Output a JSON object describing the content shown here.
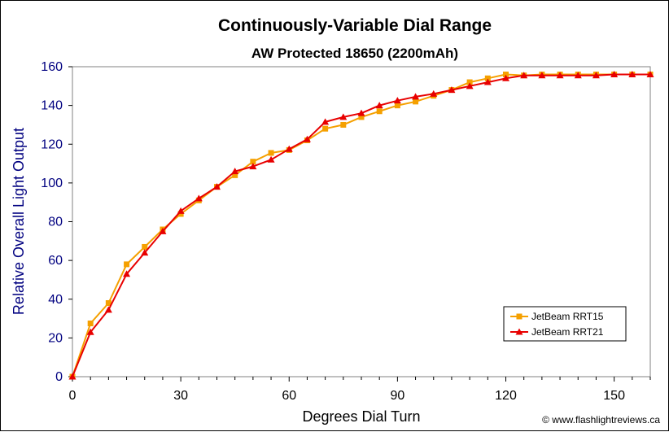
{
  "chart_data": {
    "type": "line",
    "title": "Continuously-Variable Dial Range",
    "subtitle": "AW Protected 18650 (2200mAh)",
    "xlabel": "Degrees Dial Turn",
    "ylabel": "Relative Overall Light Output",
    "xlim": [
      0,
      160
    ],
    "ylim": [
      0,
      160
    ],
    "xticks": [
      0,
      30,
      60,
      90,
      120,
      150
    ],
    "yticks": [
      0,
      20,
      40,
      60,
      80,
      100,
      120,
      140,
      160
    ],
    "grid": false,
    "legend_position": "bottom-right",
    "x": [
      0,
      5,
      10,
      15,
      20,
      25,
      30,
      35,
      40,
      45,
      50,
      55,
      60,
      65,
      70,
      75,
      80,
      85,
      90,
      95,
      100,
      105,
      110,
      115,
      120,
      125,
      130,
      135,
      140,
      145,
      150,
      155,
      160
    ],
    "series": [
      {
        "name": "JetBeam RRT15",
        "color": "#f5a000",
        "marker": "square",
        "values": [
          0,
          27.5,
          38,
          58,
          67,
          76,
          84,
          91,
          98,
          104,
          111,
          115.5,
          117,
          122,
          128,
          130,
          134,
          137,
          140,
          142,
          145,
          148,
          152,
          154,
          156,
          155.5,
          156,
          156,
          156,
          156,
          156,
          156,
          156
        ]
      },
      {
        "name": "JetBeam RRT21",
        "color": "#e80000",
        "marker": "triangle",
        "values": [
          0,
          23,
          34.5,
          53,
          64,
          75,
          85.5,
          92,
          98,
          106,
          108.5,
          112,
          117.5,
          122.5,
          131.5,
          134,
          136,
          140,
          142.5,
          144.5,
          146,
          148,
          150,
          152,
          154,
          155.5,
          155.5,
          155.5,
          155.5,
          155.5,
          156,
          156,
          156
        ]
      }
    ]
  },
  "copyright": "© www.flashlightreviews.ca"
}
